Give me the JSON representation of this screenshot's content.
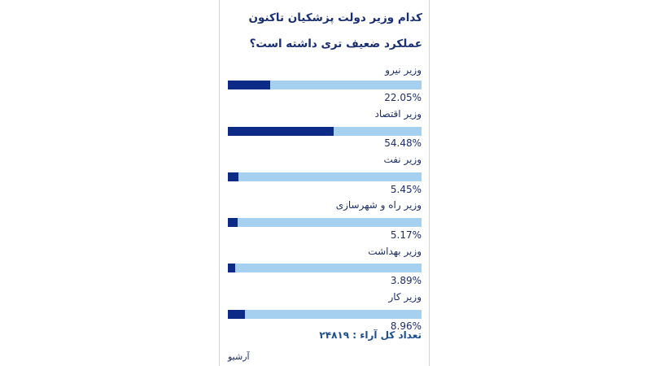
{
  "poll": {
    "question": "کدام وزیر دولت پزشکیان تاکنون عملکرد ضعیف تری داشته است؟",
    "options": [
      {
        "label": "وزیر نیرو",
        "percent_text": "22.05%",
        "value": 22.05
      },
      {
        "label": "وزیر اقتصاد",
        "percent_text": "54.48%",
        "value": 54.48
      },
      {
        "label": "وزیر نفت",
        "percent_text": "5.45%",
        "value": 5.45
      },
      {
        "label": "وزیر راه و شهرسازی",
        "percent_text": "5.17%",
        "value": 5.17
      },
      {
        "label": "وزیر بهداشت",
        "percent_text": "3.89%",
        "value": 3.89
      },
      {
        "label": "وزیر کار",
        "percent_text": "8.96%",
        "value": 8.96
      }
    ],
    "total_votes": "تعداد کل آراء : ۲۴۸۱۹",
    "archive_link": "آرشیو"
  },
  "colors": {
    "bar_fill": "#0d2a86",
    "bar_track": "#a6d0ef",
    "text": "#1d2f66"
  }
}
